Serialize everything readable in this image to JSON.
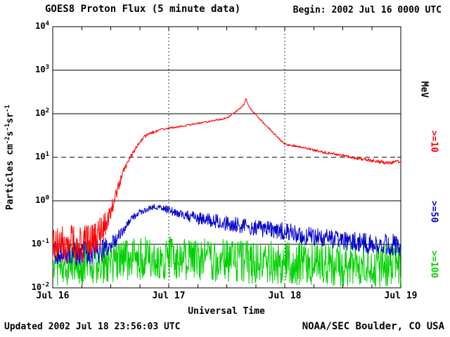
{
  "header": {
    "title": "GOES8 Proton Flux (5 minute data)",
    "begin": "Begin: 2002 Jul 16 0000 UTC"
  },
  "footer": {
    "updated": "Updated 2002 Jul 18 23:56:03 UTC",
    "credit": "NOAA/SEC Boulder, CO USA"
  },
  "axes": {
    "xlabel": "Universal Time",
    "right_unit": "MeV",
    "ylabel_parts": [
      {
        "text": "Particles cm",
        "sup": false
      },
      {
        "text": "-2",
        "sup": true
      },
      {
        "text": "s",
        "sup": false
      },
      {
        "text": "-1",
        "sup": true
      },
      {
        "text": "sr",
        "sup": false
      },
      {
        "text": "-1",
        "sup": true
      }
    ]
  },
  "chart_data": {
    "type": "line",
    "title": "GOES8 Proton Flux (5 minute data)",
    "xlabel": "Universal Time",
    "ylabel": "Particles cm^-2 s^-1 sr^-1",
    "x_unit": "hours since 2002 Jul 16 0000 UTC",
    "x_range": [
      0,
      72
    ],
    "y_log_range": [
      -2,
      4
    ],
    "y_tick_exponents": [
      4,
      3,
      2,
      1,
      0,
      -1,
      -2
    ],
    "x_tick_hours": [
      0,
      24,
      48,
      72
    ],
    "x_tick_labels": [
      "Jul 16",
      "Jul 17",
      "Jul 18",
      "Jul 19"
    ],
    "sample_minutes": 5,
    "threshold": {
      "value": 10,
      "style": "dashed"
    },
    "grid": {
      "horizontal": "solid line per decade",
      "vertical": "dotted line per day"
    },
    "legend_position": "right-rotated",
    "series": [
      {
        "label": ">=10",
        "unit": "MeV",
        "color": "#FF0000",
        "anchors": {
          "x": [
            0,
            2,
            4,
            6,
            8,
            10,
            11,
            12,
            13,
            14,
            15,
            16,
            17,
            18,
            19,
            20,
            22,
            24,
            26,
            28,
            30,
            32,
            34,
            36,
            37,
            38,
            39,
            39.6,
            40,
            40.4,
            41,
            42,
            44,
            46,
            48,
            52,
            56,
            60,
            64,
            66,
            68,
            70,
            71,
            72
          ],
          "y": [
            0.12,
            0.1,
            0.11,
            0.09,
            0.13,
            0.2,
            0.3,
            0.6,
            1.2,
            3,
            6,
            10,
            15,
            22,
            30,
            35,
            42,
            47,
            50,
            55,
            60,
            65,
            72,
            80,
            95,
            115,
            140,
            165,
            225,
            165,
            125,
            95,
            56,
            33,
            20,
            16.5,
            13,
            11,
            9,
            8.3,
            7.8,
            7.3,
            7.8,
            7.8
          ],
          "noise": [
            0.45,
            0.45,
            0.45,
            0.45,
            0.4,
            0.35,
            0.3,
            0.22,
            0.15,
            0.1,
            0.08,
            0.06,
            0.05,
            0.04,
            0.035,
            0.03,
            0.025,
            0.02,
            0.02,
            0.02,
            0.02,
            0.02,
            0.02,
            0.02,
            0.02,
            0.02,
            0.02,
            0.02,
            0.015,
            0.02,
            0.02,
            0.02,
            0.02,
            0.02,
            0.025,
            0.025,
            0.03,
            0.03,
            0.035,
            0.04,
            0.04,
            0.045,
            0.045,
            0.045
          ]
        }
      },
      {
        "label": ">=50",
        "unit": "MeV",
        "color": "#0000CD",
        "anchors": {
          "x": [
            0,
            4,
            8,
            10,
            12,
            13,
            14,
            15,
            16,
            18,
            20,
            21,
            22,
            24,
            26,
            28,
            30,
            34,
            38,
            42,
            46,
            48,
            52,
            56,
            60,
            64,
            68,
            72
          ],
          "y": [
            0.065,
            0.06,
            0.065,
            0.07,
            0.1,
            0.13,
            0.18,
            0.25,
            0.35,
            0.55,
            0.68,
            0.73,
            0.7,
            0.62,
            0.5,
            0.44,
            0.4,
            0.33,
            0.28,
            0.24,
            0.21,
            0.2,
            0.16,
            0.14,
            0.12,
            0.11,
            0.1,
            0.095
          ],
          "noise": [
            0.28,
            0.28,
            0.28,
            0.26,
            0.22,
            0.18,
            0.15,
            0.12,
            0.1,
            0.07,
            0.06,
            0.06,
            0.07,
            0.09,
            0.11,
            0.13,
            0.15,
            0.17,
            0.18,
            0.19,
            0.2,
            0.2,
            0.22,
            0.22,
            0.23,
            0.24,
            0.25,
            0.25
          ]
        }
      },
      {
        "label": ">=100",
        "unit": "MeV",
        "color": "#00D000",
        "anchors": {
          "x": [
            0,
            8,
            16,
            24,
            32,
            40,
            48,
            56,
            64,
            72
          ],
          "y": [
            0.035,
            0.038,
            0.045,
            0.05,
            0.045,
            0.04,
            0.038,
            0.035,
            0.033,
            0.033
          ],
          "noise": [
            0.5,
            0.5,
            0.5,
            0.5,
            0.5,
            0.5,
            0.5,
            0.5,
            0.5,
            0.5
          ]
        }
      }
    ]
  }
}
